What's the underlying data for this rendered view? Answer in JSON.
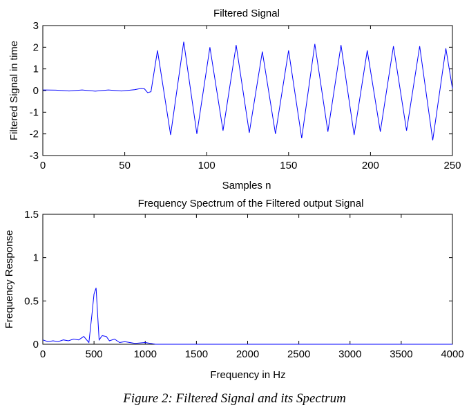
{
  "figure_caption": "Figure 2: Filtered Signal and its Spectrum",
  "colors": {
    "line": "#0000ff",
    "axes": "#000000",
    "background": "#ffffff"
  },
  "chart_data": [
    {
      "type": "line",
      "title": "Filtered Signal",
      "xlabel": "Samples n",
      "ylabel": "Filtered Signal in time",
      "xlim": [
        0,
        250
      ],
      "ylim": [
        -3,
        3
      ],
      "xticks": [
        0,
        50,
        100,
        150,
        200,
        250
      ],
      "yticks": [
        -3,
        -2,
        -1,
        0,
        1,
        2,
        3
      ],
      "grid": false,
      "series": [
        {
          "x": [
            0,
            8,
            16,
            24,
            32,
            40,
            48,
            56,
            60,
            62,
            64,
            66,
            70,
            78,
            86,
            94,
            102,
            110,
            118,
            126,
            134,
            142,
            150,
            158,
            166,
            174,
            182,
            190,
            198,
            206,
            214,
            222,
            230,
            238,
            246,
            250
          ],
          "y": [
            0.03,
            0.02,
            -0.02,
            0.03,
            -0.03,
            0.03,
            -0.02,
            0.04,
            0.1,
            0.08,
            -0.1,
            -0.05,
            1.85,
            -2.05,
            2.25,
            -2.0,
            2.0,
            -1.85,
            2.1,
            -1.95,
            1.8,
            -2.0,
            1.85,
            -2.2,
            2.15,
            -1.9,
            2.1,
            -2.05,
            1.85,
            -1.9,
            2.05,
            -1.85,
            2.05,
            -2.3,
            1.95,
            0.1
          ]
        }
      ]
    },
    {
      "type": "line",
      "title": "Frequency Spectrum of the Filtered output Signal",
      "xlabel": "Frequency in Hz",
      "ylabel": "Frequency Response",
      "xlim": [
        0,
        4000
      ],
      "ylim": [
        0,
        1.5
      ],
      "xticks": [
        0,
        500,
        1000,
        1500,
        2000,
        2500,
        3000,
        3500,
        4000
      ],
      "yticks": [
        0,
        0.5,
        1,
        1.5
      ],
      "grid": false,
      "series": [
        {
          "x": [
            0,
            50,
            100,
            150,
            200,
            250,
            300,
            350,
            400,
            450,
            480,
            500,
            520,
            550,
            580,
            620,
            650,
            700,
            750,
            800,
            900,
            1000,
            1100,
            1500,
            2000,
            3000,
            4000
          ],
          "y": [
            0.05,
            0.03,
            0.04,
            0.03,
            0.05,
            0.04,
            0.06,
            0.05,
            0.09,
            0.02,
            0.35,
            0.58,
            0.65,
            0.05,
            0.1,
            0.09,
            0.04,
            0.06,
            0.02,
            0.03,
            0.01,
            0.02,
            0.0,
            0.0,
            0.0,
            0.0,
            0.0
          ]
        }
      ]
    }
  ]
}
